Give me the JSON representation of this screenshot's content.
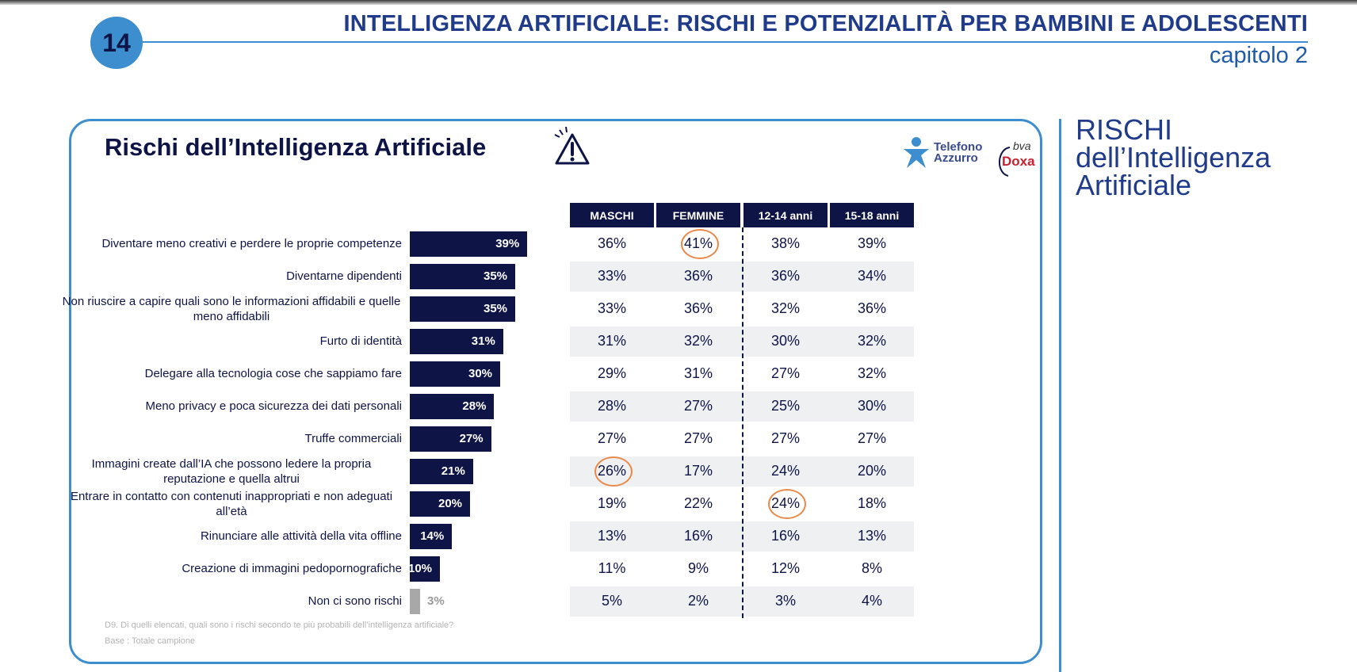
{
  "header": {
    "page_number": "14",
    "title": "INTELLIGENZA ARTIFICIALE: RISCHI E POTENZIALITÀ PER BAMBINI E ADOLESCENTI",
    "subtitle": "capitolo 2"
  },
  "side": {
    "title": "RISCHI dell’Intelligenza Artificiale"
  },
  "logos": {
    "telefono": "Telefono Azzurro",
    "bva": "bva",
    "doxa": "Doxa"
  },
  "chart_data": [
    {
      "type": "bar",
      "title": "Rischi dell’Intelligenza Artificiale",
      "orientation": "horizontal",
      "categories": [
        "Diventare meno creativi e perdere le proprie competenze",
        "Diventarne dipendenti",
        "Non riuscire a capire quali sono le informazioni affidabili e quelle meno affidabili",
        "Furto di identità",
        "Delegare alla tecnologia cose che sappiamo fare",
        "Meno privacy e poca sicurezza dei dati personali",
        "Truffe commerciali",
        "Immagini create dall’IA che possono ledere la propria reputazione e quella altrui",
        "Entrare in contatto con contenuti inappropriati e non adeguati all’età",
        "Rinunciare alle attività della vita offline",
        "Creazione di immagini pedopornografiche",
        "Non ci sono rischi"
      ],
      "values": [
        39,
        35,
        35,
        31,
        30,
        28,
        27,
        21,
        20,
        14,
        10,
        3
      ],
      "value_labels": [
        "39%",
        "35%",
        "35%",
        "31%",
        "30%",
        "28%",
        "27%",
        "21%",
        "20%",
        "14%",
        "10%",
        "3%"
      ],
      "colors": {
        "bar": "#0e1446",
        "last_bar": "#a8a8a8"
      },
      "grid": false,
      "legend": "none"
    },
    {
      "type": "table",
      "columns": [
        "MASCHI",
        "FEMMINE",
        "12-14 anni",
        "15-18 anni"
      ],
      "rows": [
        [
          "36%",
          "41%",
          "38%",
          "39%"
        ],
        [
          "33%",
          "36%",
          "36%",
          "34%"
        ],
        [
          "33%",
          "36%",
          "32%",
          "36%"
        ],
        [
          "31%",
          "32%",
          "30%",
          "32%"
        ],
        [
          "29%",
          "31%",
          "27%",
          "32%"
        ],
        [
          "28%",
          "27%",
          "25%",
          "30%"
        ],
        [
          "27%",
          "27%",
          "27%",
          "27%"
        ],
        [
          "26%",
          "17%",
          "24%",
          "20%"
        ],
        [
          "19%",
          "22%",
          "24%",
          "18%"
        ],
        [
          "13%",
          "16%",
          "16%",
          "13%"
        ],
        [
          "11%",
          "9%",
          "12%",
          "8%"
        ],
        [
          "5%",
          "2%",
          "3%",
          "4%"
        ]
      ],
      "highlighted_cells": [
        [
          0,
          1
        ],
        [
          7,
          0
        ],
        [
          8,
          2
        ]
      ],
      "colors": {
        "header": "#0e1446",
        "band": "#eef0f2",
        "highlight": "#e98a4b"
      }
    }
  ],
  "footnotes": {
    "question": "D9. Di quelli elencati, quali sono i rischi secondo te più probabili dell’intelligenza artificiale?",
    "base": "Base : Totale campione"
  }
}
